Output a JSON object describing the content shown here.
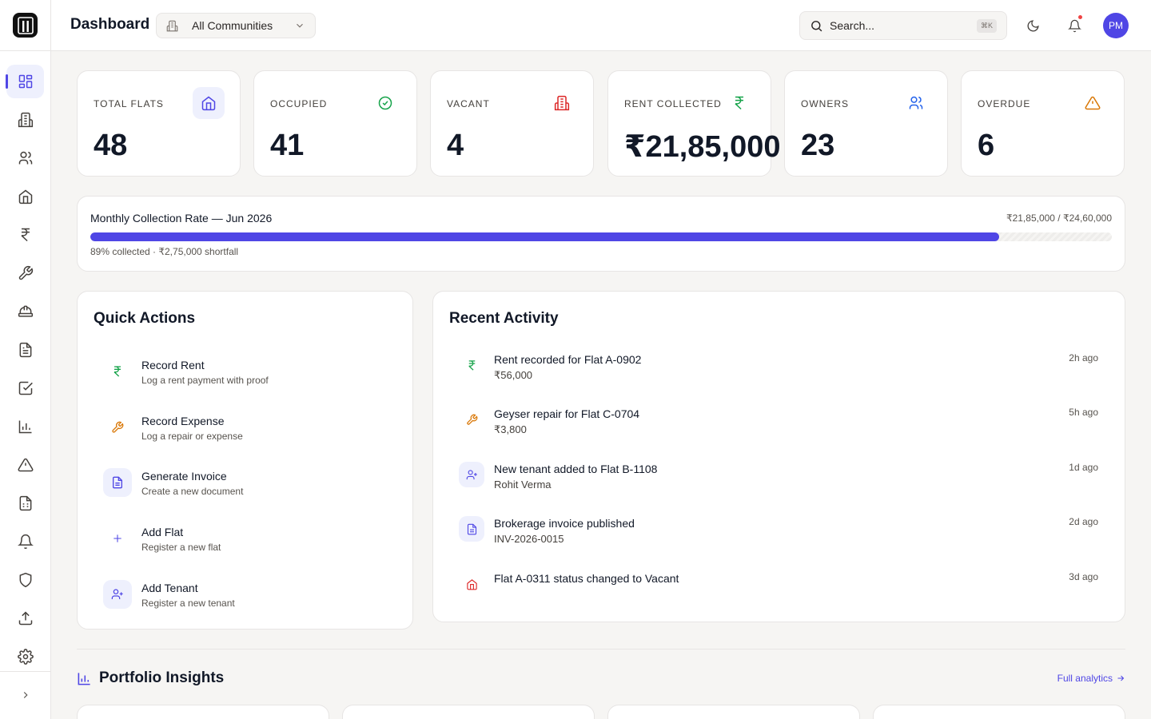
{
  "header": {
    "title": "Dashboard",
    "community_selector": "All Communities",
    "search_placeholder": "Search...",
    "search_shortcut": "⌘K",
    "avatar_initials": "PM"
  },
  "sidebar": {
    "items": [
      {
        "icon": "dashboard-icon",
        "active": true
      },
      {
        "icon": "building-icon"
      },
      {
        "icon": "users-icon"
      },
      {
        "icon": "home-icon"
      },
      {
        "icon": "rupee-icon"
      },
      {
        "icon": "wrench-icon"
      },
      {
        "icon": "hard-hat-icon"
      },
      {
        "icon": "document-icon"
      },
      {
        "icon": "checkbox-icon"
      },
      {
        "icon": "bar-chart-icon"
      },
      {
        "icon": "warning-icon"
      },
      {
        "icon": "spreadsheet-icon"
      },
      {
        "icon": "bell-icon"
      },
      {
        "icon": "shield-icon"
      },
      {
        "icon": "upload-icon"
      },
      {
        "icon": "settings-icon"
      }
    ]
  },
  "stats": [
    {
      "label": "TOTAL FLATS",
      "value": "48",
      "icon": "home-icon",
      "color": "#4f46e5"
    },
    {
      "label": "OCCUPIED",
      "value": "41",
      "icon": "check-circle-icon",
      "color": "#16a34a"
    },
    {
      "label": "VACANT",
      "value": "4",
      "icon": "building-icon",
      "color": "#dc2626"
    },
    {
      "label": "RENT COLLECTED",
      "value": "₹21,85,000",
      "icon": "rupee-icon",
      "color": "#16a34a"
    },
    {
      "label": "OWNERS",
      "value": "23",
      "icon": "users-icon",
      "color": "#2563eb"
    },
    {
      "label": "OVERDUE",
      "value": "6",
      "icon": "warning-icon",
      "color": "#d97706"
    }
  ],
  "collection": {
    "title": "Monthly Collection Rate — Jun 2026",
    "amount": "₹21,85,000 / ₹24,60,000",
    "progress": 0.89,
    "note": "89% collected · ₹2,75,000 shortfall"
  },
  "quick_actions": {
    "title": "Quick Actions",
    "items": [
      {
        "title": "Record Rent",
        "subtitle": "Log a rent payment with proof",
        "icon": "rupee-icon",
        "color": "#16a34a"
      },
      {
        "title": "Record Expense",
        "subtitle": "Log a repair or expense",
        "icon": "wrench-icon",
        "color": "#d97706"
      },
      {
        "title": "Generate Invoice",
        "subtitle": "Create a new document",
        "icon": "document-icon",
        "color": "#4f46e5"
      },
      {
        "title": "Add Flat",
        "subtitle": "Register a new flat",
        "icon": "plus-icon",
        "color": "#4f46e5"
      },
      {
        "title": "Add Tenant",
        "subtitle": "Register a new tenant",
        "icon": "user-plus-icon",
        "color": "#4f46e5"
      }
    ]
  },
  "recent_activity": {
    "title": "Recent Activity",
    "items": [
      {
        "title": "Rent recorded for Flat A-0902",
        "detail": "₹56,000",
        "time": "2h ago",
        "icon": "rupee-icon",
        "color": "#16a34a"
      },
      {
        "title": "Geyser repair for Flat C-0704",
        "detail": "₹3,800",
        "time": "5h ago",
        "icon": "wrench-icon",
        "color": "#d97706"
      },
      {
        "title": "New tenant added to Flat B-1108",
        "detail": "Rohit Verma",
        "time": "1d ago",
        "icon": "user-plus-icon",
        "color": "#4f46e5"
      },
      {
        "title": "Brokerage invoice published",
        "detail": "INV-2026-0015",
        "time": "2d ago",
        "icon": "document-icon",
        "color": "#4f46e5"
      },
      {
        "title": "Flat A-0311 status changed to Vacant",
        "detail": "",
        "time": "3d ago",
        "icon": "home-icon",
        "color": "#dc2626"
      }
    ]
  },
  "insights": {
    "title": "Portfolio Insights",
    "link": "Full analytics"
  }
}
